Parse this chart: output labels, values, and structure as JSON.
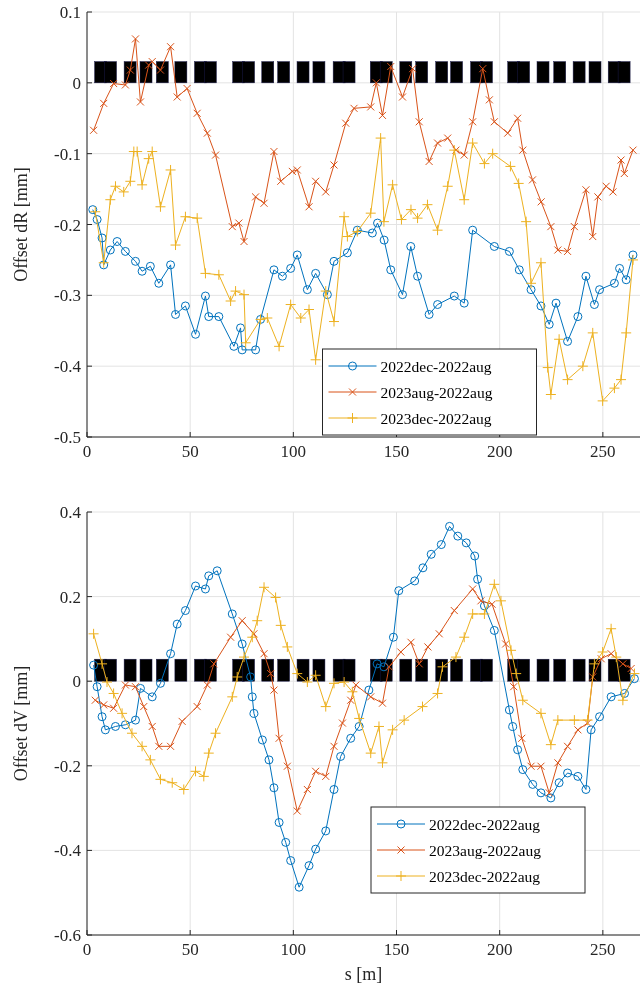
{
  "chart_data": [
    {
      "type": "line",
      "ylabel": "Offset dR [mm]",
      "xlim": [
        0,
        268
      ],
      "ylim": [
        -0.5,
        0.1
      ],
      "xticks": [
        0,
        50,
        100,
        150,
        200,
        250
      ],
      "yticks": [
        -0.5,
        -0.4,
        -0.3,
        -0.2,
        -0.1,
        0,
        0.1
      ],
      "grid": true,
      "legend": "bottom",
      "line_style": "solid",
      "series": [
        {
          "type": "bar",
          "color": "#000000",
          "x": [
            6.6,
            11.4,
            20.9,
            28.6,
            36.5,
            45.5,
            55.0,
            59.8,
            73.5,
            78.3,
            87.6,
            95.3,
            104.7,
            112.4,
            122.2,
            127.0,
            140.2,
            145.0,
            154.5,
            162.2,
            171.9,
            179.1,
            188.8,
            193.6,
            206.8,
            211.6,
            221.0,
            229.1,
            238.5,
            246.2,
            255.5,
            260.3
          ],
          "values": [
            0.03,
            0.03,
            0.03,
            0.03,
            0.03,
            0.03,
            0.03,
            0.03,
            0.03,
            0.03,
            0.03,
            0.03,
            0.03,
            0.03,
            0.03,
            0.03,
            0.03,
            0.03,
            0.03,
            0.03,
            0.03,
            0.03,
            0.03,
            0.03,
            0.03,
            0.03,
            0.03,
            0.03,
            0.03,
            0.03,
            0.03,
            0.03
          ]
        },
        {
          "name": "2022dec-2022aug",
          "color": "#0072bd",
          "marker": "circle",
          "x": [
            2.8,
            4.9,
            7.3,
            8.1,
            11.3,
            14.6,
            18.6,
            23.5,
            26.7,
            30.7,
            34.8,
            40.5,
            42.9,
            47.7,
            52.6,
            57.4,
            59,
            63.9,
            71.2,
            74.4,
            75.2,
            81.7,
            84.1,
            90.6,
            94.7,
            98.7,
            101.9,
            106.8,
            110.8,
            116.5,
            119.7,
            126.2,
            131,
            138.3,
            140.8,
            144,
            147.2,
            152.9,
            156.9,
            160.2,
            165.8,
            169.9,
            178,
            182.8,
            186.9,
            197.4,
            204.7,
            209.5,
            215.2,
            220,
            224,
            227.3,
            232.9,
            237.9,
            241.8,
            245.9,
            248.4,
            255.6,
            258.1,
            261.3,
            264.6
          ],
          "values": [
            -0.179,
            -0.193,
            -0.219,
            -0.257,
            -0.236,
            -0.224,
            -0.238,
            -0.252,
            -0.266,
            -0.259,
            -0.283,
            -0.257,
            -0.327,
            -0.315,
            -0.355,
            -0.301,
            -0.33,
            -0.33,
            -0.372,
            -0.346,
            -0.377,
            -0.377,
            -0.334,
            -0.264,
            -0.273,
            -0.262,
            -0.243,
            -0.292,
            -0.269,
            -0.299,
            -0.252,
            -0.24,
            -0.208,
            -0.212,
            -0.198,
            -0.222,
            -0.264,
            -0.299,
            -0.231,
            -0.273,
            -0.327,
            -0.313,
            -0.301,
            -0.311,
            -0.208,
            -0.231,
            -0.238,
            -0.264,
            -0.292,
            -0.315,
            -0.341,
            -0.311,
            -0.365,
            -0.33,
            -0.273,
            -0.313,
            -0.292,
            -0.283,
            -0.262,
            -0.278,
            -0.243
          ]
        },
        {
          "name": "2023aug-2022aug",
          "color": "#d95319",
          "marker": "cross",
          "x": [
            3.2,
            8.1,
            12.9,
            18.6,
            21,
            23.5,
            25.9,
            29.9,
            31.6,
            35.6,
            40.5,
            43.7,
            48.5,
            53.4,
            58.3,
            62.3,
            70.4,
            73.6,
            76.1,
            81.7,
            85.8,
            90.6,
            93.9,
            99.5,
            101.9,
            107.6,
            110.8,
            115.7,
            119.7,
            125.4,
            129.4,
            137.5,
            140.2,
            143.2,
            147.2,
            152.9,
            157.8,
            161,
            165.8,
            169.9,
            174.8,
            178.8,
            182.8,
            186.9,
            191.8,
            195,
            197.4,
            203.9,
            208.7,
            211.2,
            215.9,
            220.1,
            224.8,
            228.2,
            232.9,
            236.2,
            241.8,
            245.1,
            247.6,
            251.6,
            254.9,
            258.8,
            260.4,
            264.6
          ],
          "values": [
            -0.067,
            -0.029,
            -0.001,
            -0.003,
            0.018,
            0.062,
            -0.027,
            0.025,
            0.03,
            0.018,
            0.051,
            -0.02,
            -0.008,
            -0.043,
            -0.071,
            -0.102,
            -0.203,
            -0.198,
            -0.224,
            -0.161,
            -0.17,
            -0.097,
            -0.139,
            -0.125,
            -0.123,
            -0.175,
            -0.139,
            -0.154,
            -0.116,
            -0.057,
            -0.036,
            -0.034,
            0,
            -0.046,
            0.023,
            -0.02,
            0.02,
            -0.055,
            -0.111,
            -0.085,
            -0.078,
            -0.095,
            -0.102,
            -0.055,
            0.02,
            -0.024,
            -0.055,
            -0.071,
            -0.05,
            -0.095,
            -0.137,
            -0.168,
            -0.203,
            -0.236,
            -0.238,
            -0.203,
            -0.151,
            -0.217,
            -0.161,
            -0.146,
            -0.154,
            -0.109,
            -0.128,
            -0.095
          ]
        },
        {
          "name": "2023dec-2022aug",
          "color": "#edb120",
          "marker": "plus",
          "x": [
            4,
            8.1,
            11.3,
            13.8,
            17.8,
            21,
            22.7,
            24.3,
            26.7,
            29.9,
            31.6,
            35.6,
            40.5,
            42.9,
            47.7,
            53.4,
            57.4,
            63.9,
            69.6,
            72,
            76.1,
            76.9,
            84.1,
            87.4,
            93.1,
            98.7,
            103.6,
            107.6,
            110.8,
            115.7,
            119.7,
            124.6,
            126.2,
            131,
            137.5,
            142.3,
            143.9,
            148.1,
            152.4,
            157,
            160.2,
            165,
            169.9,
            174.8,
            178,
            182.8,
            186.9,
            192.6,
            196.6,
            205.2,
            209.2,
            212.8,
            215.2,
            220,
            223.3,
            224.8,
            228.8,
            232.9,
            240.3,
            245.1,
            249.9,
            255.6,
            258.8,
            261.3,
            264.6
          ],
          "values": [
            -0.182,
            -0.254,
            -0.165,
            -0.146,
            -0.154,
            -0.139,
            -0.097,
            -0.097,
            -0.144,
            -0.107,
            -0.097,
            -0.175,
            -0.123,
            -0.229,
            -0.189,
            -0.191,
            -0.269,
            -0.271,
            -0.308,
            -0.294,
            -0.299,
            -0.367,
            -0.334,
            -0.332,
            -0.372,
            -0.313,
            -0.332,
            -0.32,
            -0.391,
            -0.294,
            -0.337,
            -0.189,
            -0.217,
            -0.21,
            -0.184,
            -0.078,
            -0.196,
            -0.144,
            -0.193,
            -0.179,
            -0.191,
            -0.172,
            -0.208,
            -0.146,
            -0.095,
            -0.165,
            -0.085,
            -0.114,
            -0.1,
            -0.118,
            -0.142,
            -0.196,
            -0.283,
            -0.254,
            -0.402,
            -0.44,
            -0.362,
            -0.419,
            -0.4,
            -0.353,
            -0.449,
            -0.431,
            -0.419,
            -0.353,
            -0.25
          ]
        }
      ]
    },
    {
      "type": "line",
      "ylabel": "Offset dV [mm]",
      "xlabel": "s [m]",
      "xlim": [
        0,
        268
      ],
      "ylim": [
        -0.6,
        0.4
      ],
      "xticks": [
        0,
        50,
        100,
        150,
        200,
        250
      ],
      "yticks": [
        -0.6,
        -0.4,
        -0.2,
        0,
        0.2,
        0.4
      ],
      "grid": true,
      "legend": "bottom right",
      "line_style": "solid",
      "series": [
        {
          "type": "bar",
          "color": "#000000",
          "x": [
            6.6,
            11.4,
            20.9,
            28.6,
            36.5,
            45.5,
            55.0,
            59.8,
            73.5,
            78.3,
            87.6,
            95.3,
            104.7,
            112.4,
            122.2,
            127.0,
            140.2,
            145.0,
            154.5,
            162.2,
            171.9,
            179.1,
            188.8,
            193.6,
            206.8,
            211.6,
            221.0,
            229.1,
            238.5,
            246.2,
            255.5,
            260.3
          ],
          "values": [
            0.052,
            0.052,
            0.052,
            0.052,
            0.052,
            0.052,
            0.052,
            0.052,
            0.052,
            0.052,
            0.052,
            0.052,
            0.052,
            0.052,
            0.052,
            0.052,
            0.052,
            0.052,
            0.052,
            0.052,
            0.052,
            0.052,
            0.052,
            0.052,
            0.052,
            0.052,
            0.052,
            0.052,
            0.052,
            0.052,
            0.052,
            0.052
          ]
        },
        {
          "name": "2022dec-2022aug",
          "color": "#0072bd",
          "marker": "circle",
          "x": [
            3.2,
            4.9,
            7.3,
            8.9,
            13.8,
            18.6,
            23.5,
            25.9,
            31.6,
            35.6,
            40.5,
            43.7,
            47.7,
            52.6,
            57.4,
            59,
            63.1,
            70.4,
            75.2,
            79.3,
            80.1,
            80.9,
            85,
            88.2,
            90.6,
            93.1,
            96.3,
            98.7,
            102.8,
            107.6,
            110.8,
            115.7,
            119.7,
            122.9,
            127.8,
            131.9,
            136.6,
            140.6,
            143.9,
            148.5,
            151.1,
            158.8,
            162.8,
            166.8,
            171.7,
            175.7,
            179.7,
            183.8,
            187.9,
            189.3,
            192.6,
            197.4,
            204.7,
            206.3,
            208.7,
            211.2,
            216,
            220,
            224.8,
            228.8,
            232.9,
            237.9,
            241.8,
            244.3,
            248.4,
            254,
            260.5,
            265.3
          ],
          "values": [
            0.038,
            -0.013,
            -0.084,
            -0.115,
            -0.107,
            -0.103,
            -0.092,
            -0.017,
            -0.037,
            -0.005,
            0.065,
            0.135,
            0.167,
            0.225,
            0.218,
            0.249,
            0.261,
            0.159,
            0.088,
            0.01,
            -0.037,
            -0.076,
            -0.139,
            -0.186,
            -0.252,
            -0.334,
            -0.381,
            -0.424,
            -0.487,
            -0.436,
            -0.397,
            -0.354,
            -0.256,
            -0.178,
            -0.135,
            -0.107,
            -0.021,
            0.041,
            0.034,
            0.104,
            0.214,
            0.237,
            0.268,
            0.3,
            0.323,
            0.366,
            0.343,
            0.327,
            0.296,
            0.241,
            0.178,
            0.12,
            -0.068,
            -0.107,
            -0.162,
            -0.209,
            -0.244,
            -0.264,
            -0.276,
            -0.24,
            -0.217,
            -0.225,
            -0.256,
            -0.115,
            -0.084,
            -0.037,
            -0.029,
            0.006
          ]
        },
        {
          "name": "2023aug-2022aug",
          "color": "#d95319",
          "marker": "cross",
          "x": [
            4,
            8.1,
            12.9,
            18.6,
            23.5,
            27.5,
            31.6,
            34.8,
            40.5,
            46.1,
            53.4,
            58.3,
            61.5,
            69.6,
            75.2,
            80.9,
            85.8,
            89,
            90.6,
            93.1,
            97.1,
            101.9,
            106.8,
            110.8,
            115.7,
            119.7,
            123.8,
            127.8,
            130.3,
            137.5,
            143.2,
            146.4,
            152.1,
            157,
            161,
            165.2,
            170.7,
            178,
            186.9,
            190.9,
            196.3,
            202.9,
            206.8,
            210.7,
            215.2,
            220,
            224,
            228.2,
            232.9,
            237.9,
            242.6,
            245.1,
            249.2,
            254,
            259.7,
            263.7
          ],
          "values": [
            -0.045,
            -0.056,
            -0.064,
            -0.009,
            -0.013,
            -0.06,
            -0.107,
            -0.154,
            -0.154,
            -0.095,
            -0.06,
            -0.009,
            0.041,
            0.104,
            0.143,
            0.112,
            0.065,
            0.018,
            -0.021,
            -0.135,
            -0.201,
            -0.307,
            -0.256,
            -0.213,
            -0.225,
            -0.154,
            -0.099,
            -0.045,
            -0.009,
            -0.037,
            -0.052,
            0.034,
            0.069,
            0.092,
            0.041,
            0.081,
            0.112,
            0.167,
            0.218,
            0.19,
            0.182,
            0.088,
            -0.013,
            -0.135,
            -0.201,
            -0.201,
            -0.264,
            -0.193,
            -0.154,
            -0.115,
            -0.099,
            0.01,
            0.053,
            0.065,
            0.041,
            0.03
          ]
        },
        {
          "name": "2023dec-2022aug",
          "color": "#edb120",
          "marker": "plus",
          "x": [
            3.2,
            7.3,
            9.7,
            12.9,
            17,
            21.8,
            26.7,
            30.7,
            35.6,
            41.3,
            46.9,
            52.6,
            56.6,
            59,
            62.3,
            70.4,
            72.8,
            76.1,
            80.1,
            82.5,
            85.8,
            91.4,
            93.9,
            97.1,
            101.9,
            106.8,
            110.8,
            115.7,
            119.7,
            124.6,
            128.6,
            131.9,
            137.5,
            141.5,
            143.2,
            148.1,
            153.7,
            162.6,
            169.9,
            172.3,
            178.8,
            182.8,
            186.9,
            192.6,
            197.4,
            200.6,
            205.5,
            208,
            211.2,
            220,
            224.8,
            228.2,
            236.2,
            242.6,
            245.9,
            249.9,
            254,
            256.5,
            259.7,
            265.3
          ],
          "values": [
            0.112,
            0.041,
            -0.002,
            -0.029,
            -0.076,
            -0.123,
            -0.154,
            -0.186,
            -0.232,
            -0.24,
            -0.256,
            -0.213,
            -0.225,
            -0.17,
            -0.123,
            -0.037,
            0.01,
            0.057,
            0.104,
            0.143,
            0.222,
            0.198,
            0.132,
            0.081,
            0.018,
            -0.002,
            0.014,
            -0.06,
            -0.005,
            -0.002,
            -0.025,
            -0.088,
            -0.17,
            -0.107,
            -0.193,
            -0.115,
            -0.092,
            -0.06,
            -0.029,
            0.034,
            0.057,
            0.104,
            0.159,
            0.159,
            0.229,
            0.19,
            0.073,
            0.018,
            -0.045,
            -0.076,
            -0.15,
            -0.092,
            -0.092,
            -0.092,
            0.041,
            0.069,
            0.124,
            0.057,
            -0.045,
            0.018
          ]
        }
      ]
    }
  ]
}
